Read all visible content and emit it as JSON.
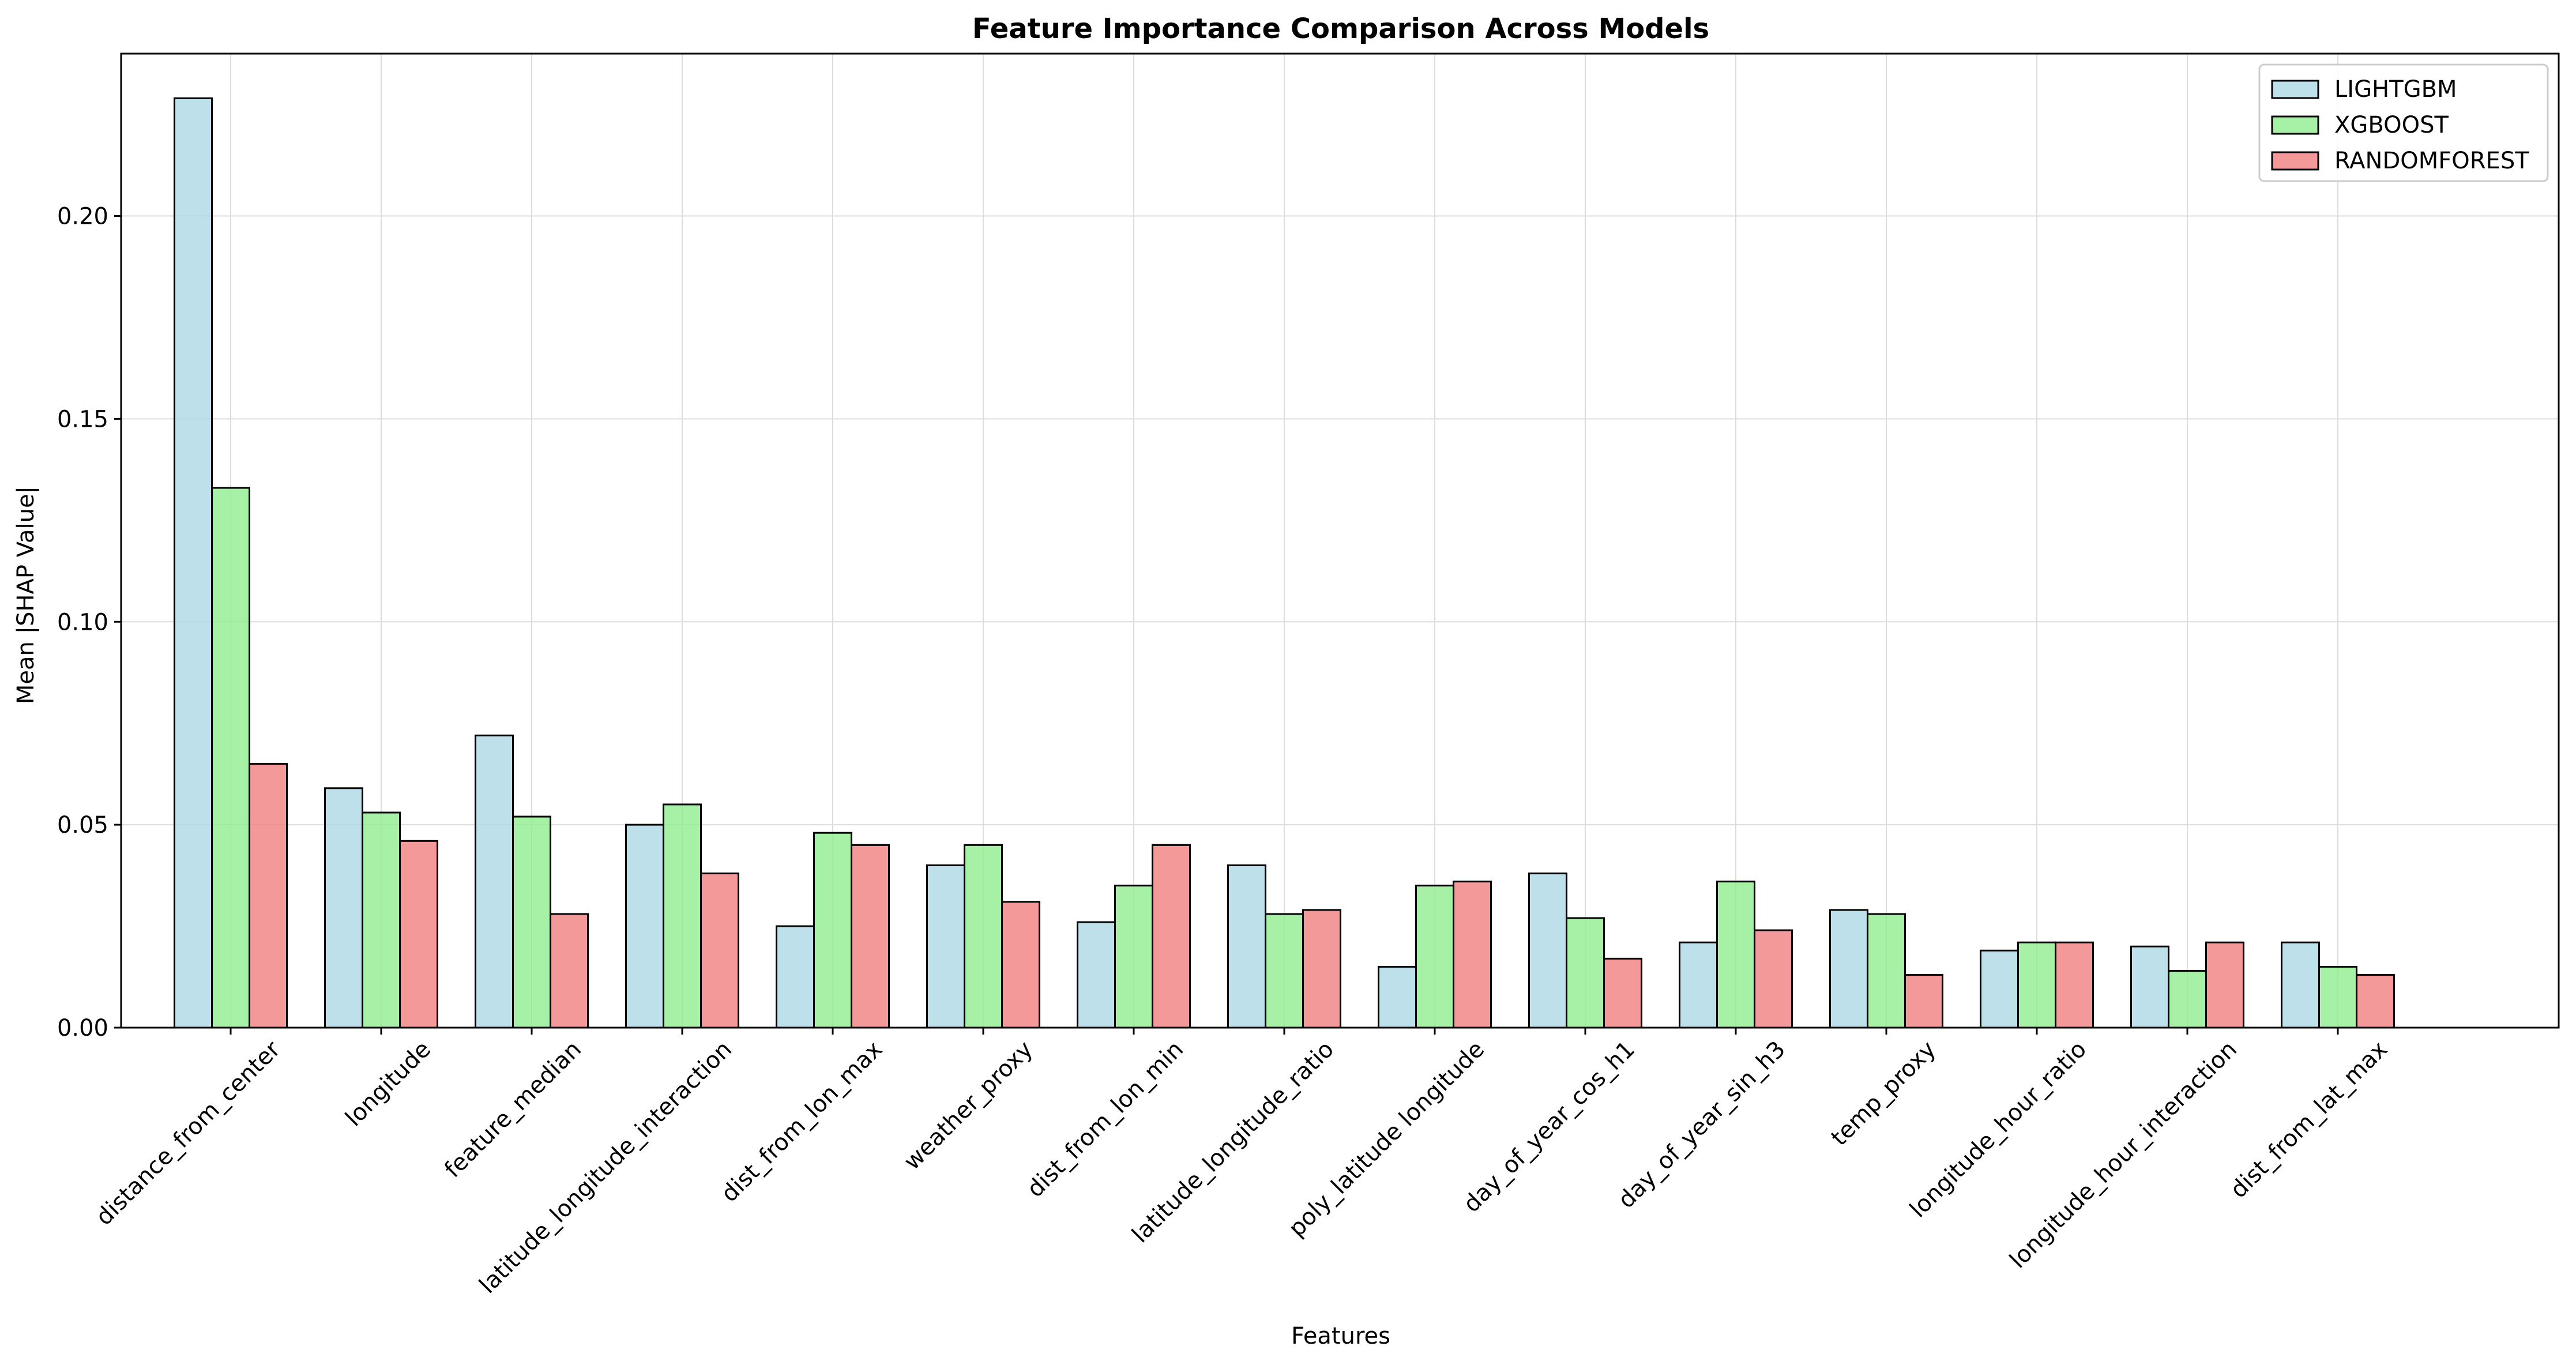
{
  "chart_data": {
    "type": "bar",
    "title": "Feature Importance Comparison Across Models",
    "xlabel": "Features",
    "ylabel": "Mean |SHAP Value|",
    "ylim": [
      0,
      0.24
    ],
    "yticks": [
      0.0,
      0.05,
      0.1,
      0.15,
      0.2
    ],
    "ytick_labels": [
      "0.00",
      "0.05",
      "0.10",
      "0.15",
      "0.20"
    ],
    "grid": true,
    "legend_position": "top-right",
    "categories": [
      "distance_from_center",
      "longitude",
      "feature_median",
      "latitude_longitude_interaction",
      "dist_from_lon_max",
      "weather_proxy",
      "dist_from_lon_min",
      "latitude_longitude_ratio",
      "poly_latitude longitude",
      "day_of_year_cos_h1",
      "day_of_year_sin_h3",
      "temp_proxy",
      "longitude_hour_ratio",
      "longitude_hour_interaction",
      "dist_from_lat_max"
    ],
    "series": [
      {
        "name": "LIGHTGBM",
        "color": "#add8e6",
        "values": [
          0.229,
          0.059,
          0.072,
          0.05,
          0.025,
          0.04,
          0.026,
          0.04,
          0.015,
          0.038,
          0.021,
          0.029,
          0.019,
          0.02,
          0.021
        ]
      },
      {
        "name": "XGBOOST",
        "color": "#90ee90",
        "values": [
          0.133,
          0.053,
          0.052,
          0.055,
          0.048,
          0.045,
          0.035,
          0.028,
          0.035,
          0.027,
          0.036,
          0.028,
          0.021,
          0.014,
          0.015
        ]
      },
      {
        "name": "RANDOMFOREST",
        "color": "#f08080",
        "values": [
          0.065,
          0.046,
          0.028,
          0.038,
          0.045,
          0.031,
          0.045,
          0.029,
          0.036,
          0.017,
          0.024,
          0.013,
          0.021,
          0.021,
          0.013
        ]
      }
    ]
  }
}
